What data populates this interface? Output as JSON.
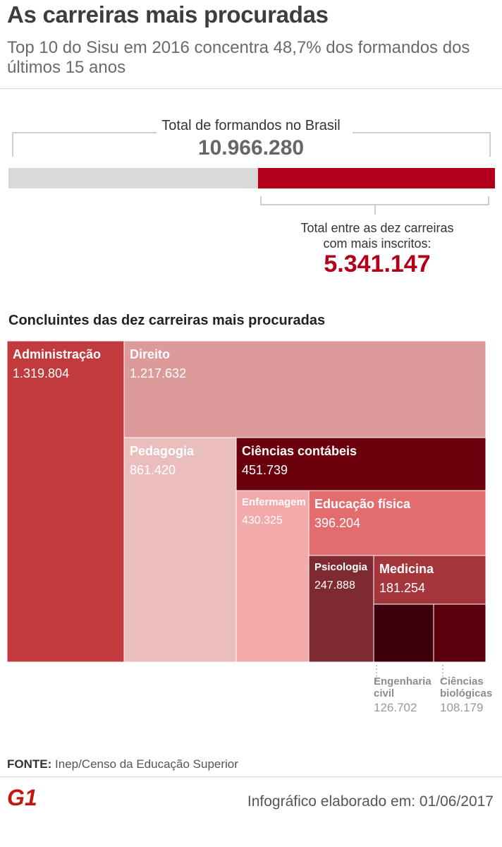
{
  "header": {
    "title": "As carreiras mais procuradas",
    "subtitle": "Top 10 do Sisu em 2016 concentra 48,7% dos formandos dos últimos 15 anos"
  },
  "summary": {
    "total_label": "Total de formandos no Brasil",
    "total_value": "10.966.280",
    "top10_label_1": "Total entre as dez carreiras",
    "top10_label_2": "com mais inscritos:",
    "top10_value": "5.341.147",
    "total_number": 10966280,
    "top10_number": 5341147
  },
  "chart_data": {
    "type": "treemap",
    "title": "Concluintes das dez carreiras mais procuradas",
    "items": [
      {
        "label": "Administração",
        "display": "1.319.804",
        "value": 1319804,
        "color": "#c03a3e",
        "text_color": "#ffffff"
      },
      {
        "label": "Direito",
        "display": "1.217.632",
        "value": 1217632,
        "color": "#dd9a9b",
        "text_color": "#ffffff"
      },
      {
        "label": "Pedagogia",
        "display": "861.420",
        "value": 861420,
        "color": "#ebbebe",
        "text_color": "#ffffff"
      },
      {
        "label": "Ciências contábeis",
        "display": "451.739",
        "value": 451739,
        "color": "#6b000c",
        "text_color": "#ffffff"
      },
      {
        "label": "Enfermagem",
        "display": "430.325",
        "value": 430325,
        "color": "#f2aaaa",
        "text_color": "#ffffff"
      },
      {
        "label": "Educação física",
        "display": "396.204",
        "value": 396204,
        "color": "#e36c6e",
        "text_color": "#ffffff"
      },
      {
        "label": "Psicologia",
        "display": "247.888",
        "value": 247888,
        "color": "#7d2a30",
        "text_color": "#ffffff"
      },
      {
        "label": "Medicina",
        "display": "181.254",
        "value": 181254,
        "color": "#a5363b",
        "text_color": "#ffffff"
      },
      {
        "label": "Engenharia civil",
        "display": "126.702",
        "value": 126702,
        "color": "#3e000a",
        "text_color": "#9a9a9a"
      },
      {
        "label": "Ciências biológicas",
        "display": "108.179",
        "value": 108179,
        "color": "#5b000c",
        "text_color": "#9a9a9a"
      }
    ]
  },
  "footer": {
    "source_label": "FONTE:",
    "source_text": "Inep/Censo da Educação Superior",
    "logo_text": "G1",
    "date_text": "Infográfico elaborado em: 01/06/2017"
  }
}
